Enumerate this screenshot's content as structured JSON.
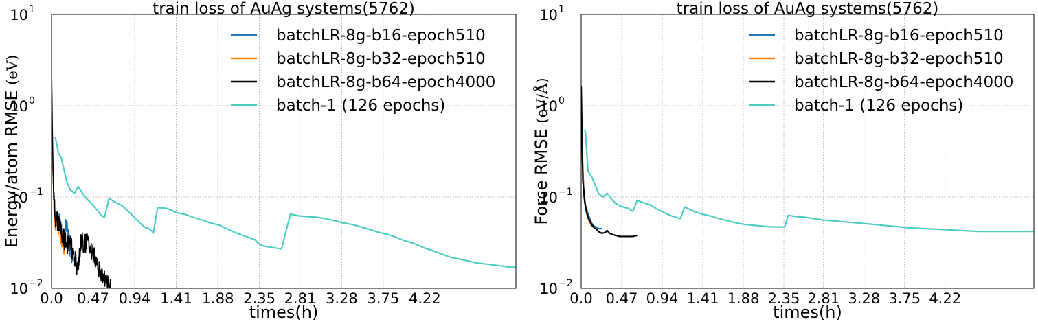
{
  "chart_data": [
    {
      "type": "line",
      "title": "train loss of AuAg systems(5762)",
      "xlabel": "times(h)",
      "ylabel": "Energy/atom RMSE",
      "ylabel_unit": "(eV)",
      "yscale": "log",
      "xlim": [
        0,
        5.25
      ],
      "ylim": [
        0.01,
        10
      ],
      "xticks": [
        0.0,
        0.47,
        0.94,
        1.41,
        1.88,
        2.35,
        2.81,
        3.28,
        3.75,
        4.22
      ],
      "xtick_labels": [
        "0.0",
        "0.47",
        "0.94",
        "1.41",
        "1.88",
        "2.35",
        "2.81",
        "3.28",
        "3.75",
        "4.22"
      ],
      "yticks": [
        0.01,
        0.1,
        1,
        10
      ],
      "ytick_labels": [
        {
          "base": "10",
          "exp": "−2"
        },
        {
          "base": "10",
          "exp": "−1"
        },
        {
          "base": "10",
          "exp": "0"
        },
        {
          "base": "10",
          "exp": "1"
        }
      ],
      "grid": true,
      "legend_position": "top-right",
      "series": [
        {
          "name": "batchLR-8g-b16-epoch510",
          "color": "#1f77b4",
          "noise": 0.15,
          "x": [
            0.0,
            0.01,
            0.03,
            0.05,
            0.08,
            0.1,
            0.12,
            0.14,
            0.16,
            0.18,
            0.2,
            0.22,
            0.24
          ],
          "y": [
            2.0,
            0.3,
            0.07,
            0.055,
            0.06,
            0.05,
            0.04,
            0.035,
            0.05,
            0.045,
            0.04,
            0.025,
            0.02
          ]
        },
        {
          "name": "batchLR-8g-b32-epoch510",
          "color": "#ff7f0e",
          "noise": 0.18,
          "x": [
            0.0,
            0.01,
            0.03,
            0.05,
            0.07,
            0.09,
            0.11,
            0.13,
            0.15
          ],
          "y": [
            2.0,
            0.3,
            0.06,
            0.05,
            0.05,
            0.045,
            0.035,
            0.03,
            0.028
          ]
        },
        {
          "name": "batchLR-8g-b64-epoch4000",
          "color": "#000000",
          "noise": 0.22,
          "x": [
            0.0,
            0.01,
            0.02,
            0.04,
            0.06,
            0.08,
            0.1,
            0.12,
            0.14,
            0.16,
            0.18,
            0.2,
            0.22,
            0.24,
            0.27,
            0.3,
            0.32,
            0.34,
            0.37,
            0.4,
            0.43,
            0.46,
            0.49,
            0.52,
            0.55,
            0.58,
            0.61,
            0.64,
            0.67
          ],
          "y": [
            2.7,
            0.5,
            0.15,
            0.06,
            0.055,
            0.05,
            0.045,
            0.04,
            0.035,
            0.032,
            0.03,
            0.028,
            0.03,
            0.024,
            0.02,
            0.016,
            0.025,
            0.035,
            0.03,
            0.032,
            0.03,
            0.025,
            0.022,
            0.018,
            0.016,
            0.014,
            0.012,
            0.011,
            0.01
          ]
        },
        {
          "name": "batch-1 (126 epochs)",
          "color": "#4ecdc4",
          "noise": 0,
          "x": [
            0.04,
            0.05,
            0.08,
            0.11,
            0.13,
            0.17,
            0.21,
            0.26,
            0.3,
            0.35,
            0.4,
            0.45,
            0.5,
            0.55,
            0.57,
            0.6,
            0.65,
            0.7,
            0.75,
            0.8,
            0.85,
            0.9,
            0.95,
            1.0,
            1.05,
            1.1,
            1.14,
            1.15,
            1.2,
            1.25,
            1.3,
            1.35,
            1.4,
            1.45,
            1.5,
            1.6,
            1.7,
            1.8,
            1.9,
            2.0,
            2.1,
            2.2,
            2.3,
            2.34,
            2.36,
            2.4,
            2.5,
            2.6,
            2.7,
            2.8,
            2.9,
            3.0,
            3.1,
            3.2,
            3.3,
            3.4,
            3.5,
            3.6,
            3.7,
            3.8,
            3.9,
            4.0,
            4.1,
            4.2,
            4.3,
            4.4,
            4.5,
            4.6,
            4.7,
            4.8,
            4.9,
            5.0,
            5.1,
            5.2,
            5.25
          ],
          "y": [
            0.45,
            0.42,
            0.3,
            0.27,
            0.22,
            0.15,
            0.12,
            0.11,
            0.13,
            0.11,
            0.095,
            0.085,
            0.075,
            0.065,
            0.062,
            0.06,
            0.097,
            0.09,
            0.085,
            0.08,
            0.072,
            0.065,
            0.058,
            0.052,
            0.047,
            0.045,
            0.042,
            0.04,
            0.077,
            0.076,
            0.075,
            0.072,
            0.068,
            0.066,
            0.065,
            0.06,
            0.056,
            0.052,
            0.049,
            0.044,
            0.04,
            0.037,
            0.034,
            0.031,
            0.03,
            0.029,
            0.028,
            0.027,
            0.065,
            0.062,
            0.061,
            0.06,
            0.058,
            0.055,
            0.052,
            0.05,
            0.047,
            0.044,
            0.041,
            0.039,
            0.036,
            0.033,
            0.031,
            0.028,
            0.026,
            0.024,
            0.022,
            0.021,
            0.02,
            0.019,
            0.0185,
            0.018,
            0.0175,
            0.017,
            0.017
          ]
        }
      ]
    },
    {
      "type": "line",
      "title": "train loss of AuAg systems(5762)",
      "xlabel": "times(h)",
      "ylabel": "Force RMSE",
      "ylabel_unit": "(eV/Å)",
      "yscale": "log",
      "xlim": [
        0,
        5.25
      ],
      "ylim": [
        0.01,
        10
      ],
      "xticks": [
        0.0,
        0.47,
        0.94,
        1.41,
        1.88,
        2.35,
        2.81,
        3.28,
        3.75,
        4.22
      ],
      "xtick_labels": [
        "0.0",
        "0.47",
        "0.94",
        "1.41",
        "1.88",
        "2.35",
        "2.81",
        "3.28",
        "3.75",
        "4.22"
      ],
      "yticks": [
        0.01,
        0.1,
        1,
        10
      ],
      "ytick_labels": [
        {
          "base": "10",
          "exp": "−2"
        },
        {
          "base": "10",
          "exp": "−1"
        },
        {
          "base": "10",
          "exp": "0"
        },
        {
          "base": "10",
          "exp": "1"
        }
      ],
      "grid": true,
      "legend_position": "top-right",
      "series": [
        {
          "name": "batchLR-8g-b16-epoch510",
          "color": "#1f77b4",
          "noise": 0,
          "x": [
            0.0,
            0.01,
            0.03,
            0.05,
            0.08,
            0.1,
            0.12,
            0.15,
            0.18,
            0.21,
            0.24
          ],
          "y": [
            1.2,
            0.3,
            0.12,
            0.08,
            0.065,
            0.058,
            0.052,
            0.048,
            0.046,
            0.045,
            0.045
          ]
        },
        {
          "name": "batchLR-8g-b32-epoch510",
          "color": "#ff7f0e",
          "noise": 0,
          "x": [
            0.0,
            0.01,
            0.03,
            0.05,
            0.07,
            0.09,
            0.11,
            0.13
          ],
          "y": [
            1.2,
            0.3,
            0.11,
            0.075,
            0.062,
            0.055,
            0.05,
            0.047
          ]
        },
        {
          "name": "batchLR-8g-b64-epoch4000",
          "color": "#000000",
          "noise": 0,
          "x": [
            0.0,
            0.01,
            0.02,
            0.04,
            0.06,
            0.08,
            0.1,
            0.12,
            0.15,
            0.18,
            0.2,
            0.24,
            0.28,
            0.3,
            0.33,
            0.36,
            0.4,
            0.45,
            0.5,
            0.55,
            0.6,
            0.65
          ],
          "y": [
            1.65,
            0.5,
            0.15,
            0.09,
            0.07,
            0.06,
            0.055,
            0.05,
            0.046,
            0.044,
            0.042,
            0.04,
            0.041,
            0.043,
            0.04,
            0.039,
            0.038,
            0.037,
            0.037,
            0.037,
            0.037,
            0.038
          ]
        },
        {
          "name": "batch-1 (126 epochs)",
          "color": "#4ecdc4",
          "noise": 0,
          "x": [
            0.04,
            0.05,
            0.08,
            0.1,
            0.13,
            0.17,
            0.2,
            0.25,
            0.3,
            0.35,
            0.4,
            0.45,
            0.5,
            0.55,
            0.57,
            0.6,
            0.65,
            0.7,
            0.8,
            0.9,
            1.0,
            1.05,
            1.1,
            1.14,
            1.15,
            1.2,
            1.3,
            1.4,
            1.5,
            1.6,
            1.7,
            1.8,
            1.9,
            2.0,
            2.1,
            2.2,
            2.3,
            2.34,
            2.36,
            2.4,
            2.5,
            2.6,
            2.7,
            2.8,
            2.9,
            3.0,
            3.2,
            3.4,
            3.6,
            3.8,
            4.0,
            4.2,
            4.4,
            4.6,
            4.8,
            5.0,
            5.25
          ],
          "y": [
            0.55,
            0.5,
            0.19,
            0.18,
            0.16,
            0.13,
            0.11,
            0.1,
            0.11,
            0.095,
            0.085,
            0.08,
            0.077,
            0.075,
            0.072,
            0.07,
            0.092,
            0.088,
            0.082,
            0.072,
            0.065,
            0.062,
            0.06,
            0.058,
            0.058,
            0.078,
            0.07,
            0.065,
            0.062,
            0.058,
            0.055,
            0.052,
            0.05,
            0.049,
            0.048,
            0.047,
            0.047,
            0.047,
            0.047,
            0.063,
            0.061,
            0.06,
            0.058,
            0.056,
            0.055,
            0.054,
            0.052,
            0.05,
            0.048,
            0.046,
            0.045,
            0.044,
            0.043,
            0.042,
            0.042,
            0.042,
            0.042
          ]
        }
      ]
    }
  ]
}
